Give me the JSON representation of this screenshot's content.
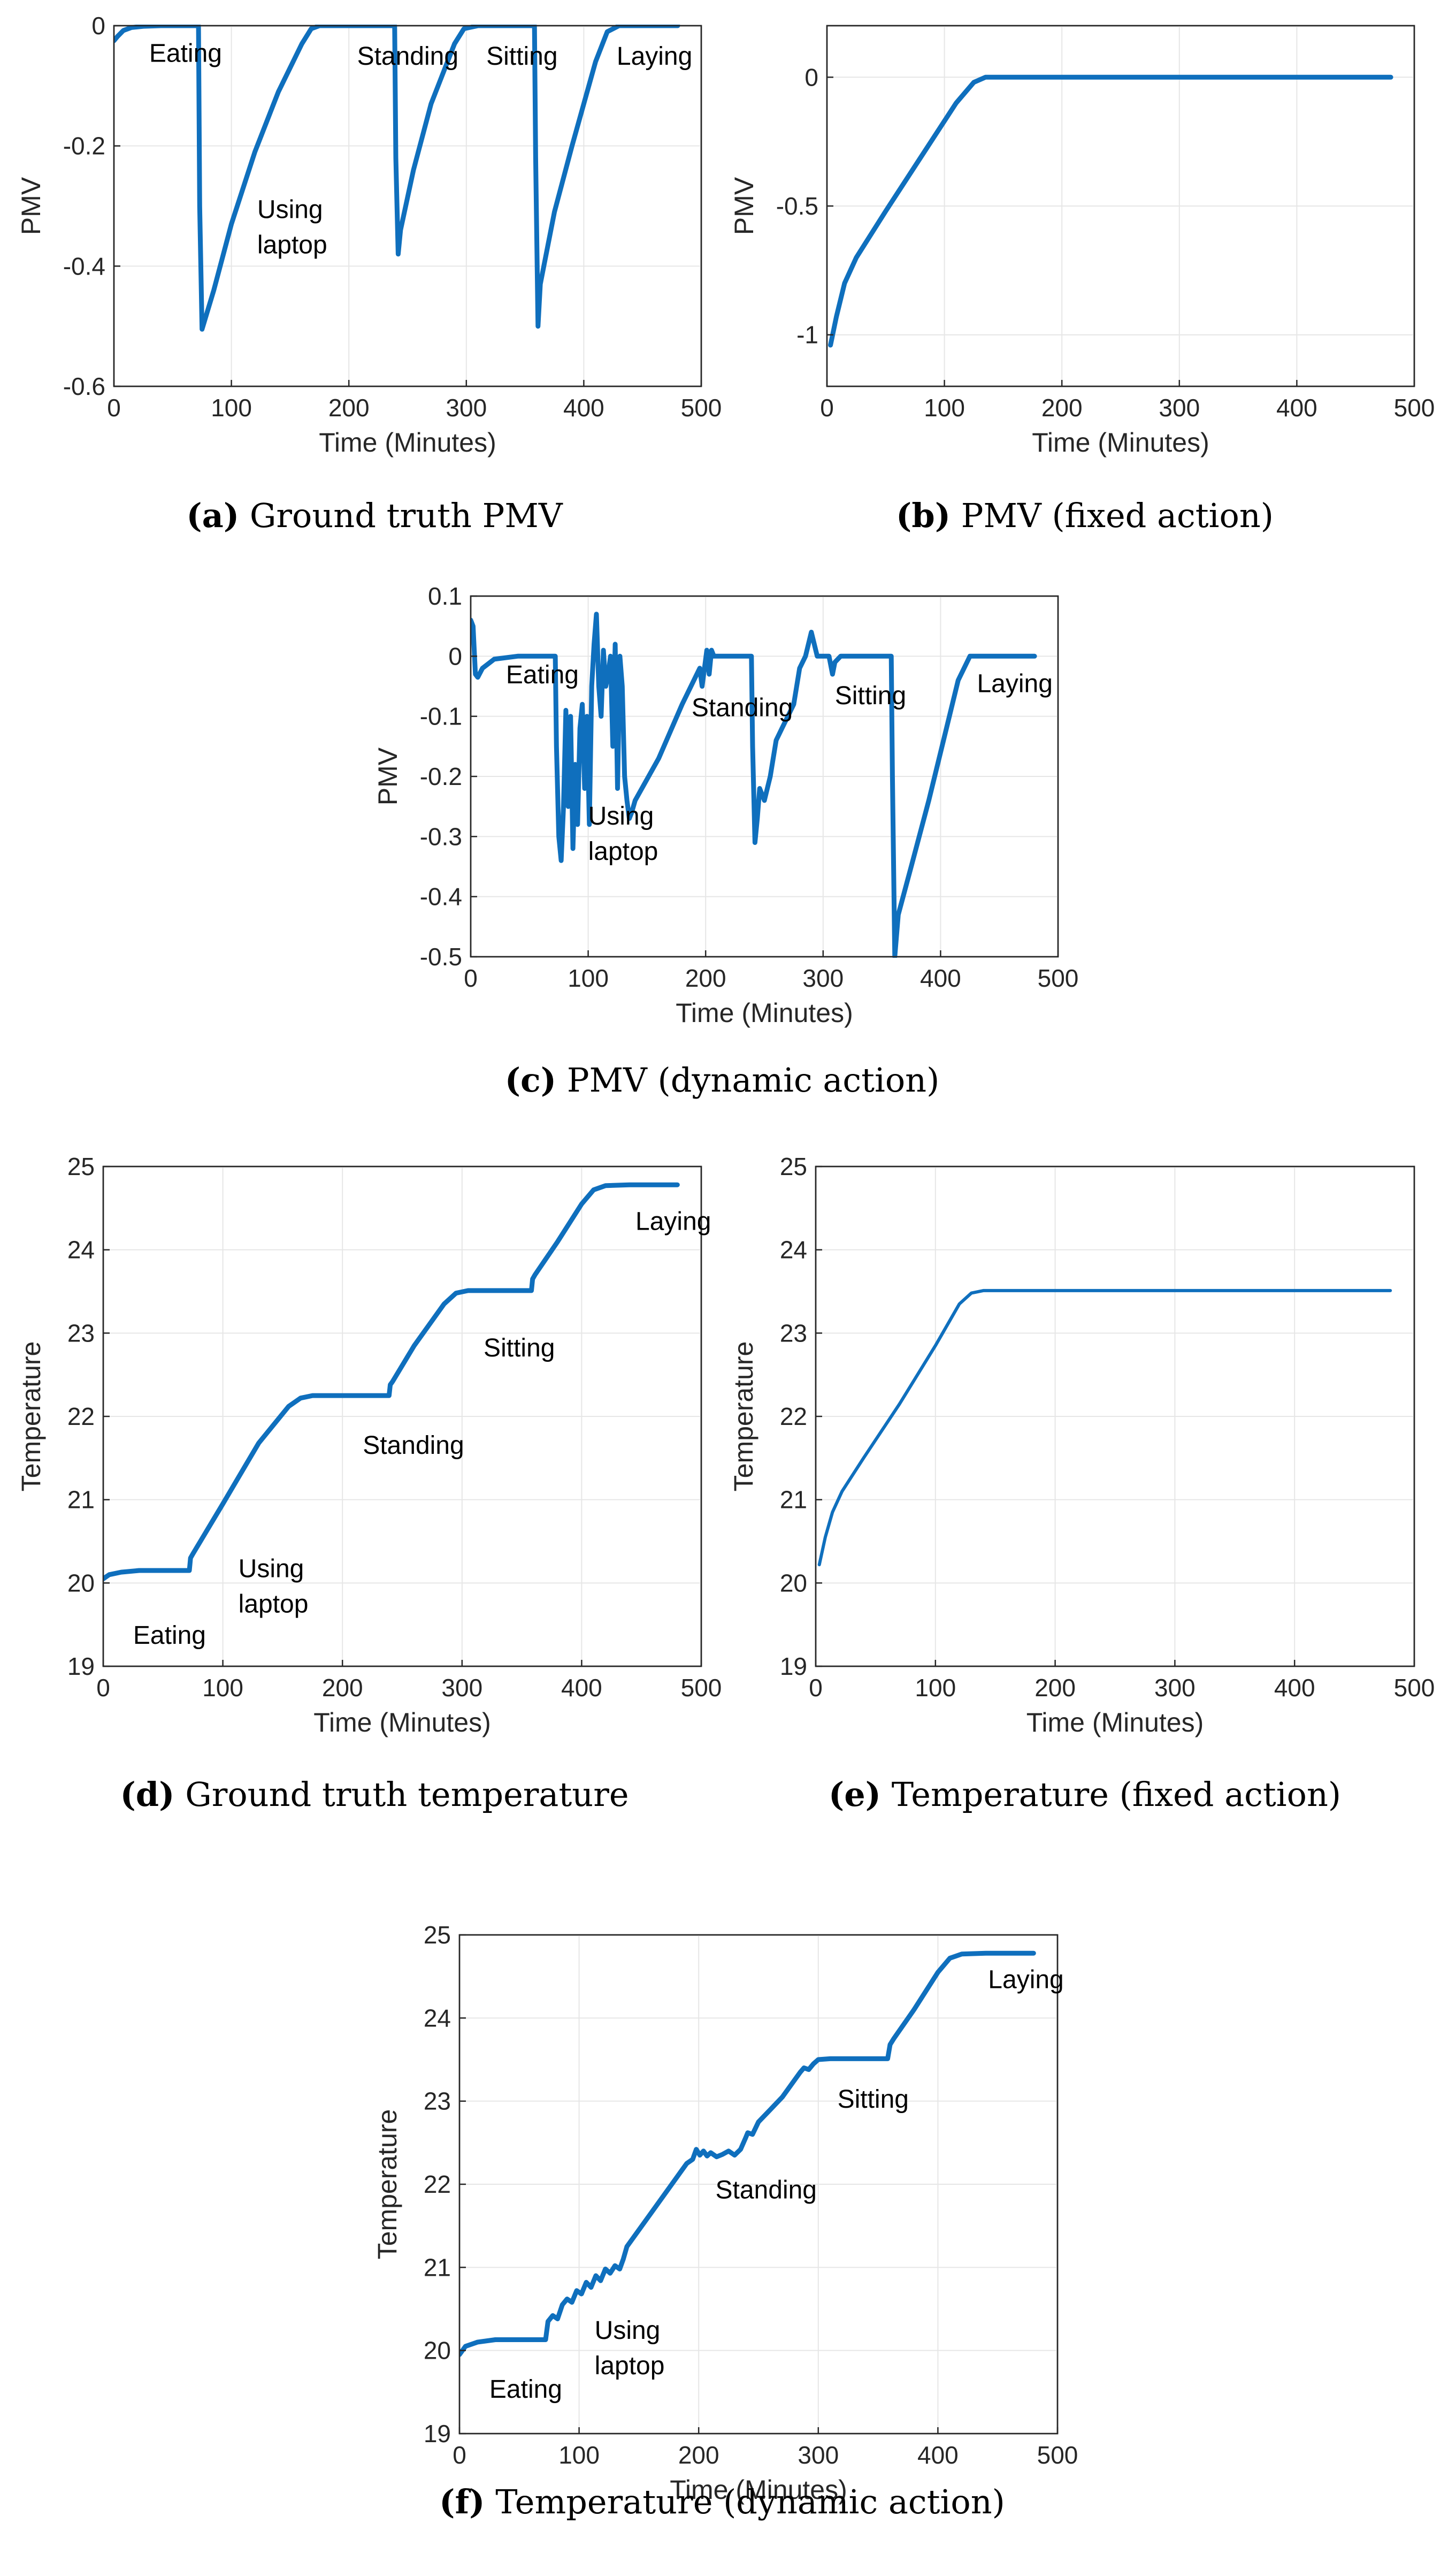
{
  "colors": {
    "series": "#0f6fbd",
    "axis": "#262626",
    "grid": "#e6e6e6"
  },
  "chart_data": [
    {
      "id": "a",
      "type": "line",
      "caption_letter": "(a)",
      "caption_text": "Ground truth PMV",
      "xlabel": "Time (Minutes)",
      "ylabel": "PMV",
      "xlim": [
        0,
        500
      ],
      "ylim": [
        -0.6,
        0
      ],
      "xticks": [
        0,
        100,
        200,
        300,
        400,
        500
      ],
      "xtick_labels": [
        "0",
        "100",
        "200",
        "300",
        "400",
        "500"
      ],
      "yticks": [
        -0.6,
        -0.4,
        -0.2,
        0
      ],
      "ytick_labels": [
        "-0.6",
        "-0.4",
        "-0.2",
        "0"
      ],
      "grid": true,
      "line_width": 9,
      "annotations": [
        {
          "lines": [
            "Eating"
          ],
          "x": 30,
          "y": -0.06
        },
        {
          "lines": [
            "Using",
            "laptop"
          ],
          "x": 122,
          "y": -0.32
        },
        {
          "lines": [
            "Standing"
          ],
          "x": 207,
          "y": -0.065
        },
        {
          "lines": [
            "Sitting"
          ],
          "x": 317,
          "y": -0.065
        },
        {
          "lines": [
            "Laying"
          ],
          "x": 428,
          "y": -0.065
        }
      ],
      "series": [
        {
          "name": "PMV",
          "x": [
            0,
            3,
            8,
            15,
            25,
            40,
            60,
            72,
            73,
            75,
            85,
            100,
            120,
            140,
            160,
            168,
            175,
            200,
            239,
            240,
            242,
            244,
            255,
            270,
            290,
            298,
            310,
            358,
            359,
            361,
            363,
            375,
            390,
            410,
            420,
            430,
            460,
            480
          ],
          "y": [
            -0.025,
            -0.018,
            -0.008,
            -0.003,
            -0.001,
            0,
            0,
            0,
            -0.3,
            -0.505,
            -0.44,
            -0.33,
            -0.21,
            -0.11,
            -0.03,
            -0.005,
            0,
            0,
            0,
            -0.22,
            -0.38,
            -0.34,
            -0.24,
            -0.13,
            -0.03,
            -0.005,
            0,
            0,
            -0.22,
            -0.5,
            -0.43,
            -0.31,
            -0.2,
            -0.06,
            -0.01,
            0,
            0,
            0
          ]
        }
      ]
    },
    {
      "id": "b",
      "type": "line",
      "caption_letter": "(b)",
      "caption_text": "PMV (fixed action)",
      "xlabel": "Time (Minutes)",
      "ylabel": "PMV",
      "xlim": [
        0,
        500
      ],
      "ylim": [
        -1.2,
        0.2
      ],
      "xticks": [
        0,
        100,
        200,
        300,
        400,
        500
      ],
      "xtick_labels": [
        "0",
        "100",
        "200",
        "300",
        "400",
        "500"
      ],
      "yticks": [
        -1,
        -0.5,
        0
      ],
      "ytick_labels": [
        "-1",
        "-0.5",
        "0"
      ],
      "grid": true,
      "line_width": 9,
      "annotations": [],
      "series": [
        {
          "name": "PMV",
          "x": [
            3,
            8,
            15,
            25,
            50,
            80,
            110,
            125,
            135,
            160,
            480
          ],
          "y": [
            -1.04,
            -0.93,
            -0.8,
            -0.7,
            -0.52,
            -0.31,
            -0.1,
            -0.02,
            0,
            0,
            0
          ]
        }
      ]
    },
    {
      "id": "c",
      "type": "line",
      "caption_letter": "(c)",
      "caption_text": "PMV (dynamic action)",
      "xlabel": "Time (Minutes)",
      "ylabel": "PMV",
      "xlim": [
        0,
        500
      ],
      "ylim": [
        -0.5,
        0.1
      ],
      "xticks": [
        0,
        100,
        200,
        300,
        400,
        500
      ],
      "xtick_labels": [
        "0",
        "100",
        "200",
        "300",
        "400",
        "500"
      ],
      "yticks": [
        -0.5,
        -0.4,
        -0.3,
        -0.2,
        -0.1,
        0,
        0.1
      ],
      "ytick_labels": [
        "-0.5",
        "-0.4",
        "-0.3",
        "-0.2",
        "-0.1",
        "0",
        "0.1"
      ],
      "grid": true,
      "line_width": 9,
      "annotations": [
        {
          "lines": [
            "Eating"
          ],
          "x": 30,
          "y": -0.045
        },
        {
          "lines": [
            "Using",
            "laptop"
          ],
          "x": 100,
          "y": -0.28
        },
        {
          "lines": [
            "Standing"
          ],
          "x": 188,
          "y": -0.1
        },
        {
          "lines": [
            "Sitting"
          ],
          "x": 310,
          "y": -0.08
        },
        {
          "lines": [
            "Laying"
          ],
          "x": 431,
          "y": -0.06
        }
      ],
      "series": [
        {
          "name": "PMV",
          "x": [
            0,
            2,
            4,
            6,
            10,
            20,
            40,
            72,
            73,
            75,
            77,
            79,
            81,
            83,
            85,
            87,
            89,
            91,
            93,
            95,
            97,
            99,
            101,
            103,
            105,
            107,
            109,
            111,
            113,
            115,
            117,
            119,
            121,
            123,
            125,
            127,
            129,
            131,
            133,
            135,
            137,
            140,
            160,
            180,
            195,
            197,
            199,
            201,
            203,
            205,
            207,
            210,
            215,
            220,
            225,
            230,
            235,
            239,
            240,
            242,
            244,
            246,
            250,
            255,
            260,
            265,
            270,
            275,
            280,
            285,
            290,
            295,
            300,
            305,
            308,
            310,
            315,
            330,
            358,
            359,
            361,
            364,
            375,
            390,
            405,
            415,
            425,
            480
          ],
          "y": [
            0.06,
            0.05,
            -0.03,
            -0.035,
            -0.02,
            -0.005,
            0,
            0,
            -0.15,
            -0.3,
            -0.34,
            -0.25,
            -0.09,
            -0.25,
            -0.1,
            -0.32,
            -0.18,
            -0.28,
            -0.12,
            -0.08,
            -0.22,
            -0.1,
            -0.28,
            -0.05,
            0.02,
            0.07,
            -0.05,
            -0.1,
            0.01,
            -0.05,
            -0.03,
            0.0,
            -0.15,
            0.02,
            -0.22,
            0.0,
            -0.05,
            -0.2,
            -0.24,
            -0.27,
            -0.26,
            -0.24,
            -0.17,
            -0.08,
            -0.02,
            -0.05,
            -0.02,
            0.01,
            -0.03,
            0.01,
            0.0,
            0.0,
            0.0,
            0.0,
            0.0,
            0.0,
            0.0,
            0.0,
            -0.15,
            -0.31,
            -0.27,
            -0.22,
            -0.24,
            -0.2,
            -0.14,
            -0.12,
            -0.1,
            -0.08,
            -0.02,
            0.0,
            0.04,
            0.0,
            0.0,
            0.0,
            -0.03,
            -0.01,
            0.0,
            0.0,
            0.0,
            -0.2,
            -0.5,
            -0.43,
            -0.35,
            -0.24,
            -0.12,
            -0.04,
            0.0,
            0.0
          ]
        }
      ]
    },
    {
      "id": "d",
      "type": "line",
      "caption_letter": "(d)",
      "caption_text": "Ground truth temperature",
      "xlabel": "Time (Minutes)",
      "ylabel": "Temperature",
      "xlim": [
        0,
        500
      ],
      "ylim": [
        19,
        25
      ],
      "xticks": [
        0,
        100,
        200,
        300,
        400,
        500
      ],
      "xtick_labels": [
        "0",
        "100",
        "200",
        "300",
        "400",
        "500"
      ],
      "yticks": [
        19,
        20,
        21,
        22,
        23,
        24,
        25
      ],
      "ytick_labels": [
        "19",
        "20",
        "21",
        "22",
        "23",
        "24",
        "25"
      ],
      "grid": true,
      "line_width": 9,
      "annotations": [
        {
          "lines": [
            "Eating"
          ],
          "x": 25,
          "y": 19.27
        },
        {
          "lines": [
            "Using",
            "laptop"
          ],
          "x": 113,
          "y": 20.07
        },
        {
          "lines": [
            "Standing"
          ],
          "x": 217,
          "y": 21.55
        },
        {
          "lines": [
            "Sitting"
          ],
          "x": 318,
          "y": 22.72
        },
        {
          "lines": [
            "Laying"
          ],
          "x": 445,
          "y": 24.24
        }
      ],
      "series": [
        {
          "name": "Temperature",
          "x": [
            0,
            5,
            15,
            30,
            50,
            72,
            73,
            75,
            100,
            130,
            155,
            165,
            175,
            200,
            239,
            240,
            242,
            260,
            285,
            295,
            305,
            330,
            358,
            359,
            361,
            380,
            400,
            410,
            420,
            440,
            480
          ],
          "y": [
            20.05,
            20.1,
            20.13,
            20.15,
            20.15,
            20.15,
            20.3,
            20.35,
            20.95,
            21.68,
            22.12,
            22.22,
            22.25,
            22.25,
            22.25,
            22.38,
            22.42,
            22.85,
            23.35,
            23.48,
            23.51,
            23.51,
            23.51,
            23.65,
            23.7,
            24.1,
            24.55,
            24.72,
            24.77,
            24.78,
            24.78
          ]
        }
      ]
    },
    {
      "id": "e",
      "type": "line",
      "caption_letter": "(e)",
      "caption_text": "Temperature (fixed action)",
      "xlabel": "Time (Minutes)",
      "ylabel": "Temperature",
      "xlim": [
        0,
        500
      ],
      "ylim": [
        19,
        25
      ],
      "xticks": [
        0,
        100,
        200,
        300,
        400,
        500
      ],
      "xtick_labels": [
        "0",
        "100",
        "200",
        "300",
        "400",
        "500"
      ],
      "yticks": [
        19,
        20,
        21,
        22,
        23,
        24,
        25
      ],
      "ytick_labels": [
        "19",
        "20",
        "21",
        "22",
        "23",
        "24",
        "25"
      ],
      "grid": true,
      "line_width": 6,
      "annotations": [],
      "series": [
        {
          "name": "Temperature",
          "x": [
            3,
            8,
            14,
            22,
            40,
            70,
            100,
            120,
            130,
            140,
            480
          ],
          "y": [
            20.22,
            20.55,
            20.85,
            21.1,
            21.5,
            22.15,
            22.85,
            23.35,
            23.48,
            23.51,
            23.51
          ]
        }
      ]
    },
    {
      "id": "f",
      "type": "line",
      "caption_letter": "(f)",
      "caption_text": "Temperature (dynamic action)",
      "xlabel": "Time (Minutes)",
      "ylabel": "Temperature",
      "xlim": [
        0,
        500
      ],
      "ylim": [
        19,
        25
      ],
      "xticks": [
        0,
        100,
        200,
        300,
        400,
        500
      ],
      "xtick_labels": [
        "0",
        "100",
        "200",
        "300",
        "400",
        "500"
      ],
      "yticks": [
        19,
        20,
        21,
        22,
        23,
        24,
        25
      ],
      "ytick_labels": [
        "19",
        "20",
        "21",
        "22",
        "23",
        "24",
        "25"
      ],
      "grid": true,
      "line_width": 9,
      "annotations": [
        {
          "lines": [
            "Eating"
          ],
          "x": 25,
          "y": 19.43
        },
        {
          "lines": [
            "Using",
            "laptop"
          ],
          "x": 113,
          "y": 20.14
        },
        {
          "lines": [
            "Standing"
          ],
          "x": 214,
          "y": 21.83
        },
        {
          "lines": [
            "Sitting"
          ],
          "x": 316,
          "y": 22.92
        },
        {
          "lines": [
            "Laying"
          ],
          "x": 442,
          "y": 24.36
        }
      ],
      "series": [
        {
          "name": "Temperature",
          "x": [
            0,
            5,
            15,
            30,
            50,
            72,
            74,
            78,
            82,
            86,
            90,
            94,
            98,
            102,
            106,
            110,
            114,
            118,
            122,
            126,
            130,
            134,
            137,
            140,
            160,
            180,
            190,
            195,
            198,
            201,
            204,
            207,
            210,
            215,
            220,
            225,
            230,
            235,
            239,
            241,
            245,
            250,
            260,
            270,
            280,
            285,
            288,
            292,
            296,
            300,
            310,
            330,
            358,
            360,
            363,
            380,
            400,
            410,
            420,
            440,
            480
          ],
          "y": [
            19.95,
            20.05,
            20.1,
            20.13,
            20.13,
            20.13,
            20.35,
            20.42,
            20.38,
            20.55,
            20.62,
            20.58,
            20.72,
            20.68,
            20.82,
            20.76,
            20.9,
            20.84,
            20.98,
            20.93,
            21.02,
            20.98,
            21.1,
            21.25,
            21.65,
            22.05,
            22.25,
            22.3,
            22.42,
            22.35,
            22.4,
            22.34,
            22.38,
            22.33,
            22.36,
            22.4,
            22.35,
            22.42,
            22.55,
            22.62,
            22.6,
            22.75,
            22.9,
            23.05,
            23.25,
            23.35,
            23.4,
            23.38,
            23.45,
            23.5,
            23.51,
            23.51,
            23.51,
            23.68,
            23.75,
            24.1,
            24.55,
            24.72,
            24.77,
            24.78,
            24.78
          ]
        }
      ]
    }
  ]
}
